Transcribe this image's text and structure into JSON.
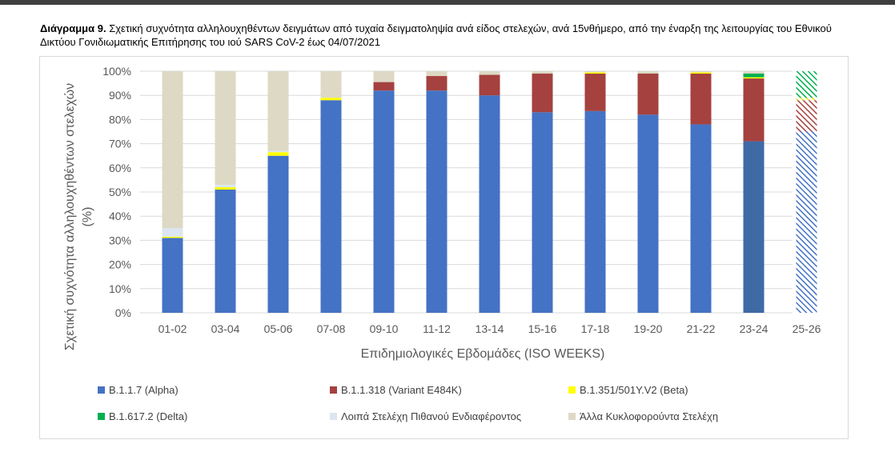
{
  "caption": {
    "label": "Διάγραμμα 9.",
    "text": " Σχετική συχνότητα αλληλουχηθέντων δειγμάτων από τυχαία δειγματοληψία ανά είδος στελεχών, ανά 15νθήμερο, από την έναρξη της λειτουργίας του Εθνικού Δικτύου Γονιδιωματικής Επιτήρησης του ιού SARS CoV-2 έως 04/07/2021"
  },
  "chart_data": {
    "type": "bar",
    "stacked": true,
    "title": "",
    "xlabel": "Επιδημιολογικές Εβδομάδες (ISO WEEKS)",
    "ylabel_line1": "Σχετική συχνότητα αλληλουχηθέντων στελεχών",
    "ylabel_line2": "(%)",
    "ylim": [
      0,
      100
    ],
    "yticks": [
      "0%",
      "10%",
      "20%",
      "30%",
      "40%",
      "50%",
      "60%",
      "70%",
      "80%",
      "90%",
      "100%"
    ],
    "categories": [
      "01-02",
      "03-04",
      "05-06",
      "07-08",
      "09-10",
      "11-12",
      "13-14",
      "15-16",
      "17-18",
      "19-20",
      "21-22",
      "23-24",
      "25-26"
    ],
    "incomplete_category": "25-26",
    "highlight_category": "23-24",
    "legend_position": "bottom",
    "series": [
      {
        "name": "B.1.1.7 (Alpha)",
        "color": "#4472c4",
        "values": [
          31,
          51,
          65,
          88,
          92,
          92,
          90,
          83,
          83.5,
          82,
          78,
          71,
          75
        ]
      },
      {
        "name": "B.1.1.318 (Variant E484K)",
        "color": "#a5413f",
        "values": [
          0,
          0,
          0,
          0,
          3.5,
          6,
          8.5,
          16,
          15.5,
          17,
          21,
          26,
          13
        ]
      },
      {
        "name": "B.1.351/501Y.V2 (Beta)",
        "color": "#ffff00",
        "values": [
          0.5,
          1,
          1.5,
          1,
          0,
          0,
          0,
          0,
          0.5,
          0,
          0.5,
          0.5,
          1
        ]
      },
      {
        "name": "B.1.617.2 (Delta)",
        "color": "#00b050",
        "values": [
          0,
          0,
          0,
          0,
          0,
          0,
          0,
          0,
          0,
          0,
          0,
          1.5,
          11
        ]
      },
      {
        "name": "Λοιπά Στελέχη Πιθανού Ενδιαφέροντος",
        "color": "#dce6f2",
        "values": [
          3.5,
          1,
          0.5,
          0,
          0,
          0,
          0,
          0,
          0,
          0,
          0,
          0,
          0
        ]
      },
      {
        "name": "Άλλα Κυκλοφορούντα Στελέχη",
        "color": "#ddd9c4",
        "values": [
          65,
          47,
          33,
          11,
          4.5,
          2,
          1.5,
          1,
          0.5,
          1,
          0.5,
          1,
          0
        ]
      }
    ]
  }
}
